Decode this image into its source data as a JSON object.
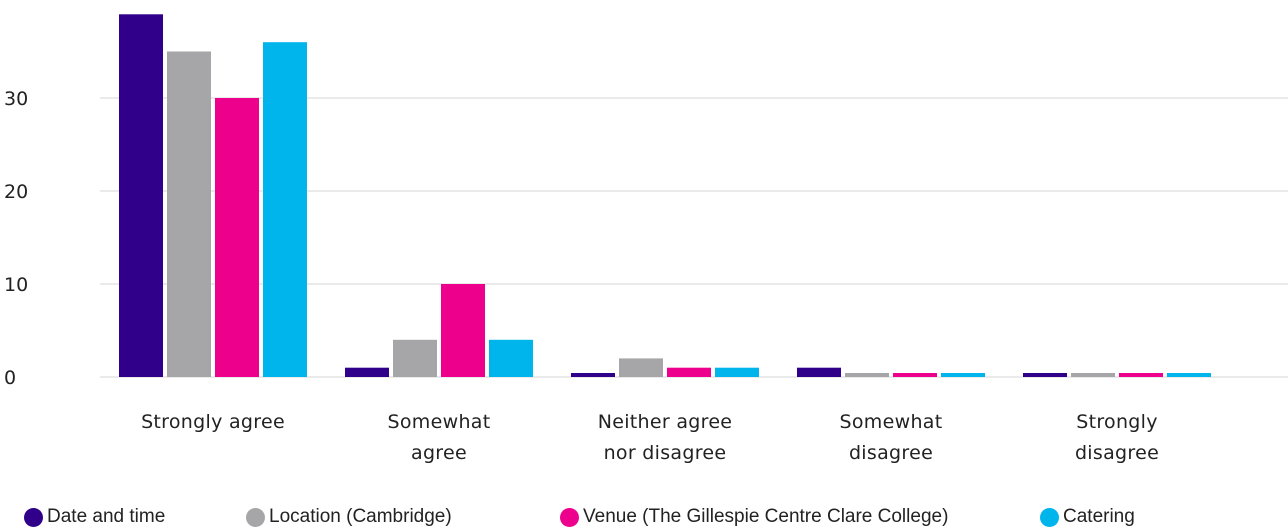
{
  "chart_data": {
    "type": "bar",
    "categories": [
      [
        "Strongly agree"
      ],
      [
        "Somewhat",
        "agree"
      ],
      [
        "Neither agree",
        "nor disagree"
      ],
      [
        "Somewhat",
        "disagree"
      ],
      [
        "Strongly",
        "disagree"
      ]
    ],
    "series": [
      {
        "name": "Date and time",
        "color": "#30008a",
        "values": [
          39,
          1,
          0,
          1,
          0
        ]
      },
      {
        "name": "Location (Cambridge)",
        "color": "#a6a6a8",
        "values": [
          35,
          4,
          2,
          0,
          0
        ]
      },
      {
        "name": "Venue (The Gillespie Centre Clare College)",
        "color": "#ec008c",
        "values": [
          30,
          10,
          1,
          0,
          0
        ]
      },
      {
        "name": "Catering",
        "color": "#00b4ec",
        "values": [
          36,
          4,
          1,
          0,
          0
        ]
      }
    ],
    "yticks": [
      0,
      10,
      20,
      30
    ],
    "ylim": [
      0,
      39
    ],
    "grid": true,
    "legend_position": "bottom"
  }
}
